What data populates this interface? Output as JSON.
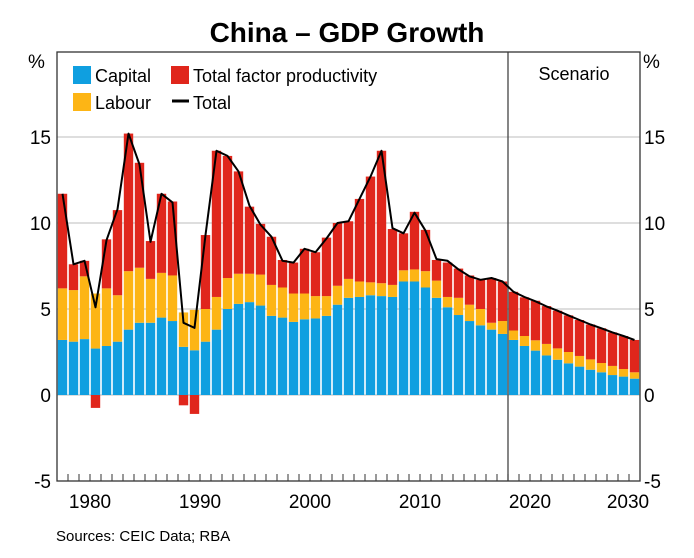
{
  "chart_data": {
    "type": "bar",
    "stacked": true,
    "title": "China – GDP Growth",
    "ylabel_left": "%",
    "ylabel_right": "%",
    "xlabel": "",
    "ylim": [
      -5,
      18
    ],
    "yticks": [
      -5,
      0,
      5,
      10,
      15
    ],
    "ytick_labels": [
      "-5",
      "0",
      "5",
      "10",
      "15"
    ],
    "xlim": [
      1978,
      2030
    ],
    "xticks": [
      1980,
      1990,
      2000,
      2010,
      2020,
      2030
    ],
    "xtick_labels": [
      "1980",
      "1990",
      "2000",
      "2010",
      "2020",
      "2030"
    ],
    "grid": true,
    "legend_position": "top-left",
    "scenario_start_year": 2019,
    "scenario_label": "Scenario",
    "source": "Sources: CEIC Data; RBA",
    "colors": {
      "capital": "#0f9fe0",
      "labour": "#fdb515",
      "tfp": "#e0261c",
      "total": "#000000",
      "grid": "#bdbdbd",
      "axis": "#333333"
    },
    "legend": [
      {
        "key": "capital",
        "label": "Capital",
        "kind": "box"
      },
      {
        "key": "tfp",
        "label": "Total factor productivity",
        "kind": "box"
      },
      {
        "key": "labour",
        "label": "Labour",
        "kind": "box"
      },
      {
        "key": "total",
        "label": "Total",
        "kind": "line"
      }
    ],
    "x": [
      1978,
      1979,
      1980,
      1981,
      1982,
      1983,
      1984,
      1985,
      1986,
      1987,
      1988,
      1989,
      1990,
      1991,
      1992,
      1993,
      1994,
      1995,
      1996,
      1997,
      1998,
      1999,
      2000,
      2001,
      2002,
      2003,
      2004,
      2005,
      2006,
      2007,
      2008,
      2009,
      2010,
      2011,
      2012,
      2013,
      2014,
      2015,
      2016,
      2017,
      2018,
      2019,
      2020,
      2021,
      2022,
      2023,
      2024,
      2025,
      2026,
      2027,
      2028,
      2029,
      2030
    ],
    "series": [
      {
        "name": "Capital",
        "key": "capital",
        "values": [
          3.2,
          3.1,
          3.25,
          2.7,
          2.85,
          3.1,
          3.8,
          4.2,
          4.2,
          4.5,
          4.3,
          2.8,
          2.6,
          3.1,
          3.8,
          5.0,
          5.3,
          5.4,
          5.2,
          4.6,
          4.5,
          4.25,
          4.4,
          4.45,
          4.6,
          5.25,
          5.65,
          5.7,
          5.8,
          5.75,
          5.7,
          6.6,
          6.6,
          6.25,
          5.65,
          5.1,
          4.65,
          4.3,
          4.05,
          3.8,
          3.55,
          3.2,
          2.85,
          2.58,
          2.3,
          2.05,
          1.84,
          1.65,
          1.47,
          1.32,
          1.16,
          1.07,
          0.95
        ]
      },
      {
        "name": "Labour",
        "key": "labour",
        "values": [
          3.0,
          3.0,
          3.65,
          3.2,
          3.35,
          2.7,
          3.4,
          3.2,
          2.55,
          2.6,
          2.65,
          2.0,
          2.35,
          1.9,
          1.9,
          1.8,
          1.75,
          1.65,
          1.8,
          1.8,
          1.75,
          1.65,
          1.5,
          1.3,
          1.15,
          1.1,
          1.1,
          0.9,
          0.75,
          0.75,
          0.7,
          0.65,
          0.7,
          0.95,
          1.0,
          0.6,
          1.0,
          0.95,
          0.95,
          0.4,
          0.75,
          0.55,
          0.58,
          0.6,
          0.67,
          0.66,
          0.66,
          0.62,
          0.6,
          0.54,
          0.53,
          0.44,
          0.37
        ]
      },
      {
        "name": "Total factor productivity",
        "key": "tfp",
        "values": [
          5.5,
          1.5,
          0.9,
          -0.75,
          2.85,
          4.95,
          8.0,
          6.1,
          2.2,
          4.6,
          4.3,
          -0.6,
          -1.1,
          4.3,
          8.5,
          7.1,
          5.95,
          3.9,
          2.95,
          2.8,
          1.6,
          1.8,
          2.6,
          2.55,
          3.4,
          3.65,
          3.35,
          4.8,
          6.15,
          7.7,
          3.25,
          2.15,
          3.35,
          2.4,
          1.2,
          2.0,
          1.7,
          1.7,
          1.7,
          2.6,
          2.3,
          2.25,
          2.25,
          2.3,
          2.2,
          2.19,
          2.13,
          2.09,
          2.03,
          2.02,
          1.95,
          1.92,
          1.88
        ]
      },
      {
        "name": "Total",
        "key": "total",
        "type": "line",
        "values": [
          11.7,
          7.6,
          7.8,
          5.1,
          9.0,
          10.8,
          15.2,
          13.4,
          8.9,
          11.7,
          11.2,
          4.2,
          3.9,
          9.3,
          14.2,
          13.9,
          13.0,
          11.0,
          9.9,
          9.2,
          7.8,
          7.7,
          8.5,
          8.3,
          9.1,
          10.0,
          10.1,
          11.4,
          12.7,
          14.2,
          9.7,
          9.4,
          10.6,
          9.55,
          7.9,
          7.8,
          7.3,
          6.9,
          6.7,
          6.8,
          6.6,
          6.0,
          5.7,
          5.45,
          5.15,
          4.9,
          4.63,
          4.36,
          4.1,
          3.88,
          3.64,
          3.43,
          3.2
        ]
      }
    ]
  }
}
